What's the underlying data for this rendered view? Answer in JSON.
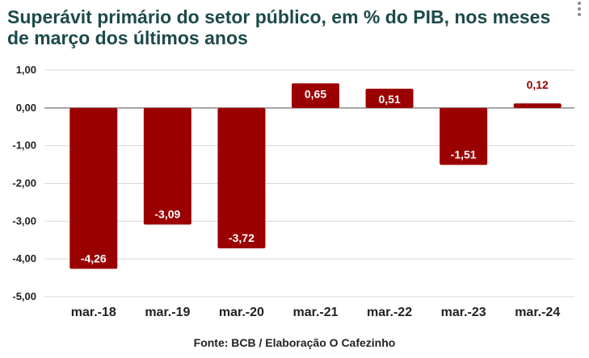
{
  "title": "Superávit primário do setor público, em % do PIB, nos meses de março dos últimos anos",
  "source": "Fonte: BCB / Elaboração O Cafezinho",
  "menu_icon": "more-vertical-icon",
  "colors": {
    "bar": "#9b0000",
    "title": "#1d4a4a",
    "grid": "#d9d9d9",
    "zero_line": "#888888",
    "label_outside": "#9b0000",
    "label_inside": "#ffffff"
  },
  "chart_data": {
    "type": "bar",
    "title": "Superávit primário do setor público, em % do PIB, nos meses de março dos últimos anos",
    "categories": [
      "mar.-18",
      "mar.-19",
      "mar.-20",
      "mar.-21",
      "mar.-22",
      "mar.-23",
      "mar.-24"
    ],
    "values": [
      -4.26,
      -3.09,
      -3.72,
      0.65,
      0.51,
      -1.51,
      0.12
    ],
    "value_labels": [
      "-4,26",
      "-3,09",
      "-3,72",
      "0,65",
      "0,51",
      "-1,51",
      "0,12"
    ],
    "y_ticks": [
      1,
      0,
      -1,
      -2,
      -3,
      -4,
      -5
    ],
    "y_tick_labels": [
      "1,00",
      "0,00",
      "-1,00",
      "-2,00",
      "-3,00",
      "-4,00",
      "-5,00"
    ],
    "ylim": [
      -5,
      1
    ],
    "xlabel": "",
    "ylabel": "",
    "grid": true,
    "legend": "none"
  }
}
